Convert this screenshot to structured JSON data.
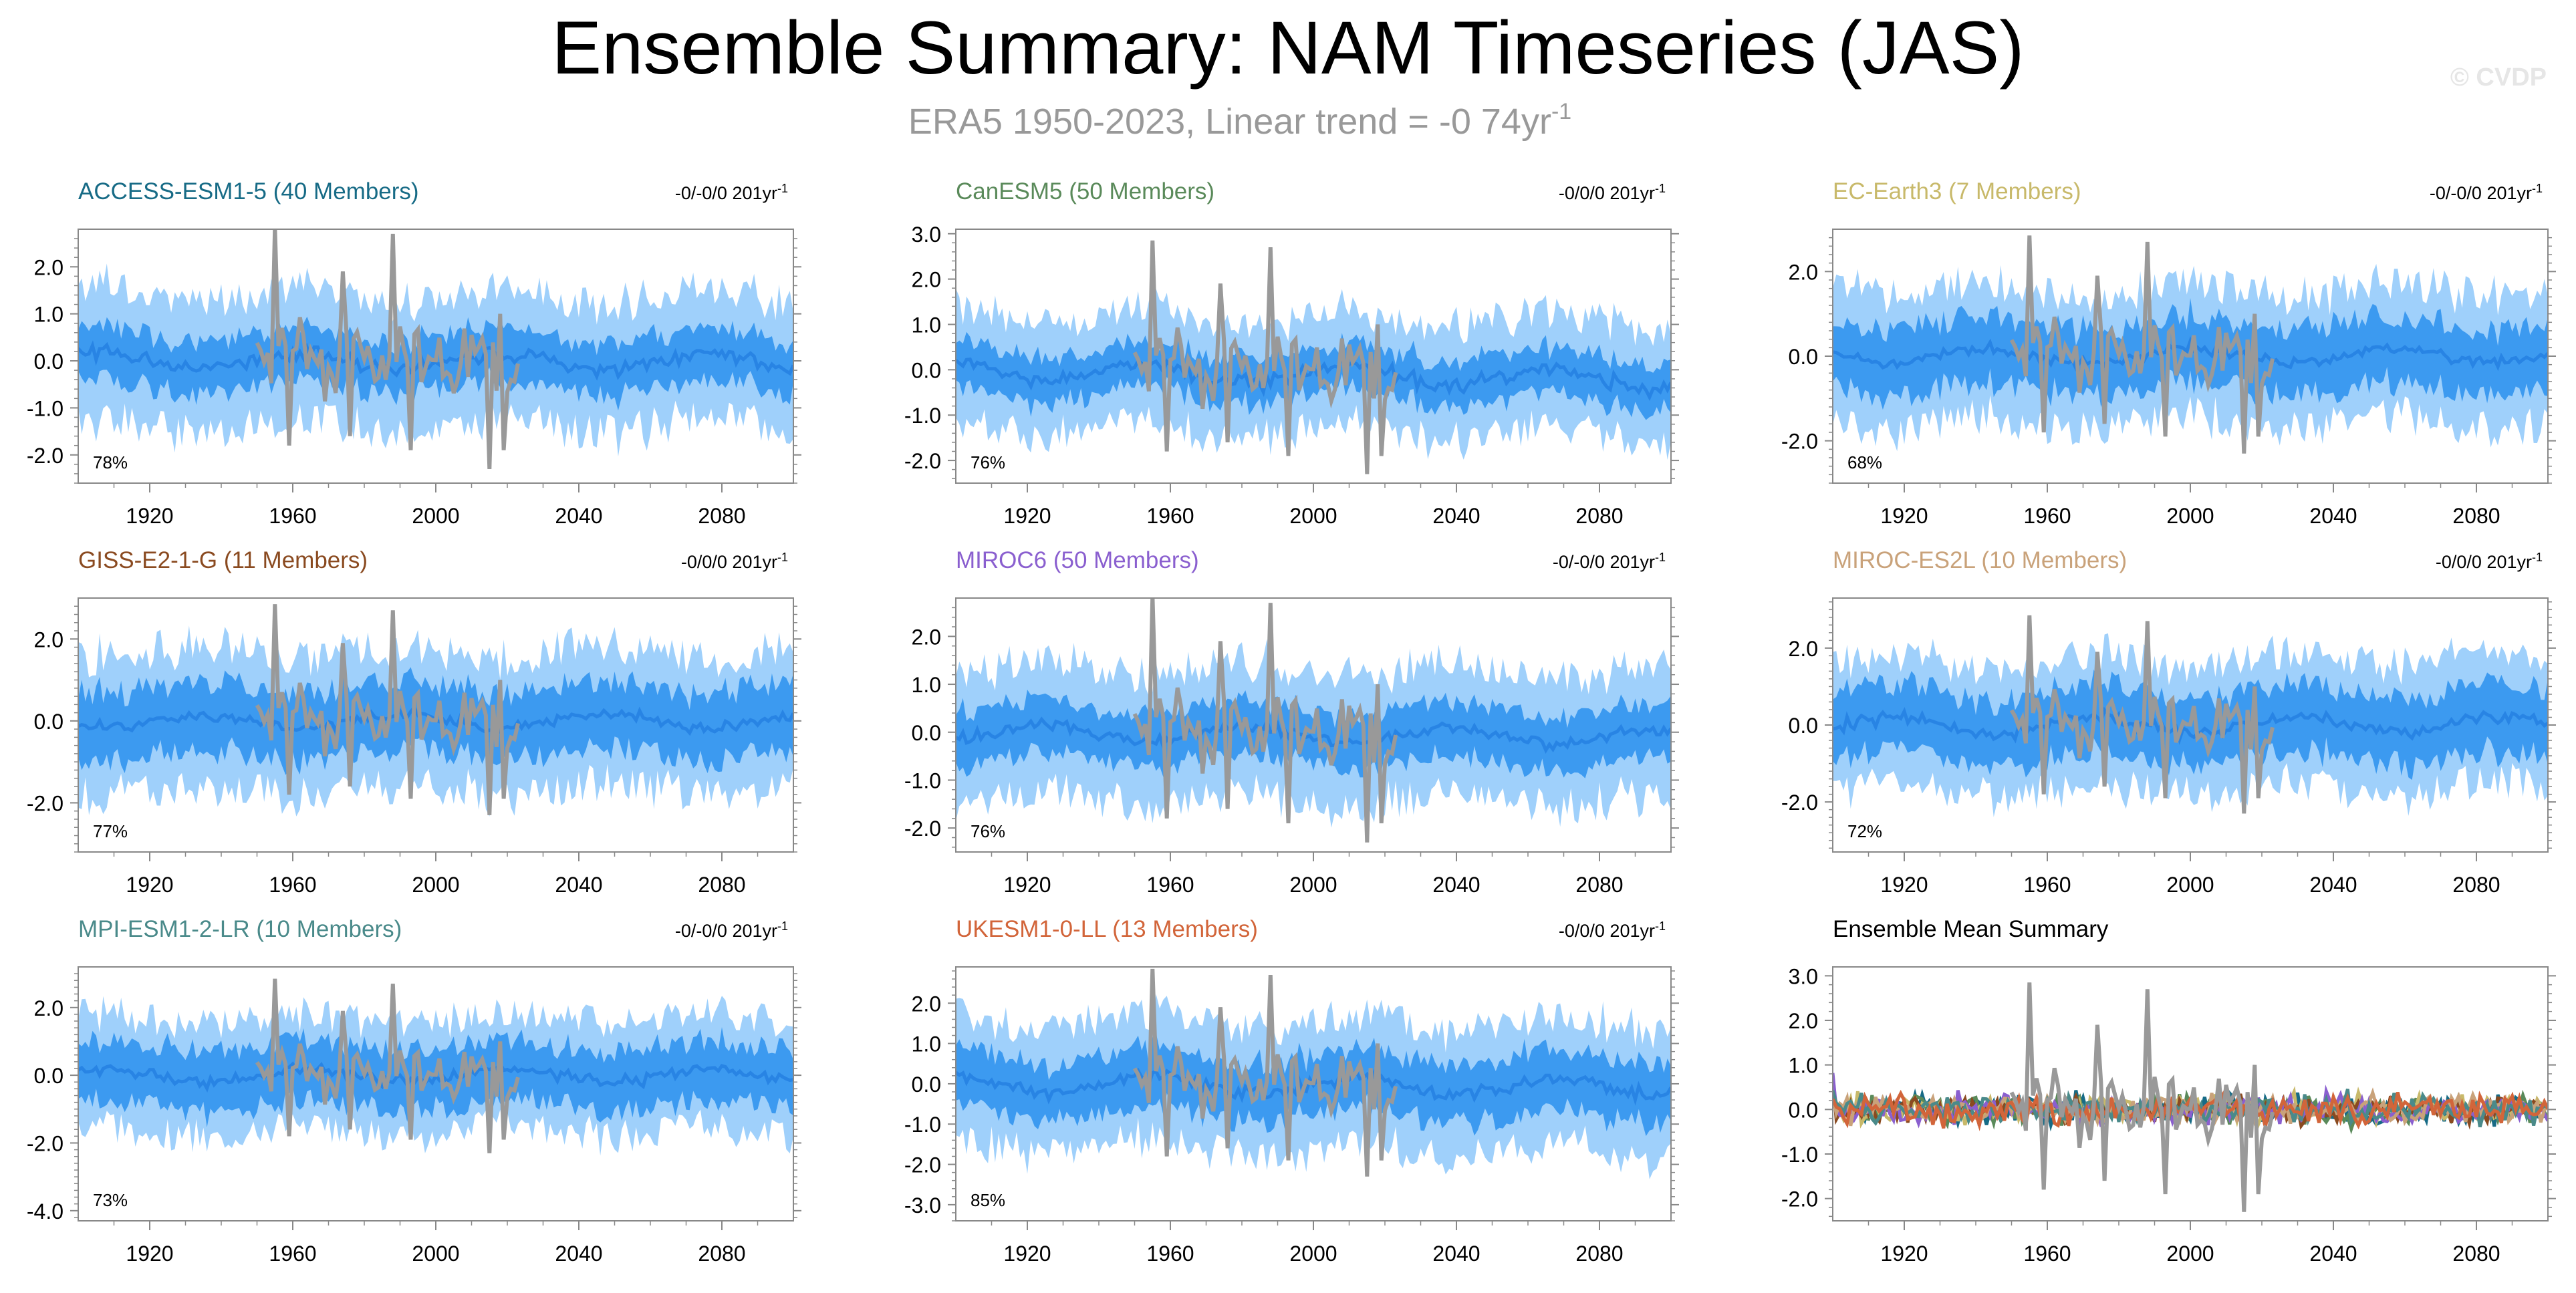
{
  "title": "Ensemble Summary: NAM Timeseries (JAS)",
  "subtitle_prefix": "ERA5 1950-2023, Linear trend = -0 74yr",
  "subtitle_exp": "-1",
  "watermark": "© CVDP",
  "colors": {
    "obs": "#999999",
    "outer_band": "#9fd0fb",
    "inner_band": "#3c9af0",
    "ens_mean": "#2884e4",
    "axis": "#888888"
  },
  "chart_data": [
    {
      "type": "area",
      "title": "ACCESS-ESM1-5 (40 Members)",
      "title_color": "#176b86",
      "trend_label": "-0/-0/0 201yr",
      "trend_exp": "-1",
      "pct": "78%",
      "ylim": [
        -2.6,
        2.8
      ],
      "yticks": [
        -2,
        -1,
        0,
        1,
        2
      ],
      "yticklabels": [
        "-2.0",
        "-1.0",
        "0.0",
        "1.0",
        "2.0"
      ],
      "xlim": [
        1900,
        2100
      ],
      "xticks": [
        1920,
        1960,
        2000,
        2040,
        2080
      ],
      "xticklabels": [
        "1920",
        "1960",
        "2000",
        "2040",
        "2080"
      ],
      "spread_outer": 1.3,
      "spread_inner": 0.5,
      "mean_amp": 0.22,
      "mean_trend": 0.0,
      "seed": 1
    },
    {
      "type": "area",
      "title": "CanESM5 (50 Members)",
      "title_color": "#5a8a5a",
      "trend_label": "-0/0/0 201yr",
      "trend_exp": "-1",
      "pct": "76%",
      "ylim": [
        -2.5,
        3.1
      ],
      "yticks": [
        -2,
        -1,
        0,
        1,
        2,
        3
      ],
      "yticklabels": [
        "-2.0",
        "-1.0",
        "0.0",
        "1.0",
        "2.0",
        "3.0"
      ],
      "xlim": [
        1900,
        2100
      ],
      "xticks": [
        1920,
        1960,
        2000,
        2040,
        2080
      ],
      "xticklabels": [
        "1920",
        "1960",
        "2000",
        "2040",
        "2080"
      ],
      "spread_outer": 1.2,
      "spread_inner": 0.45,
      "mean_amp": 0.25,
      "mean_trend": -0.2,
      "seed": 2
    },
    {
      "type": "area",
      "title": "EC-Earth3 (7 Members)",
      "title_color": "#c8b96a",
      "trend_label": "-0/-0/0 201yr",
      "trend_exp": "-1",
      "pct": "68%",
      "ylim": [
        -3.0,
        3.0
      ],
      "yticks": [
        -2,
        0,
        2
      ],
      "yticklabels": [
        "-2.0",
        "0.0",
        "2.0"
      ],
      "xlim": [
        1900,
        2100
      ],
      "xticks": [
        1920,
        1960,
        2000,
        2040,
        2080
      ],
      "xticklabels": [
        "1920",
        "1960",
        "2000",
        "2040",
        "2080"
      ],
      "spread_outer": 1.5,
      "spread_inner": 0.7,
      "mean_amp": 0.2,
      "mean_trend": 0.0,
      "seed": 3
    },
    {
      "type": "area",
      "title": "GISS-E2-1-G (11 Members)",
      "title_color": "#8a4a20",
      "trend_label": "-0/0/0 201yr",
      "trend_exp": "-1",
      "pct": "77%",
      "ylim": [
        -3.2,
        3.0
      ],
      "yticks": [
        -2,
        0,
        2
      ],
      "yticklabels": [
        "-2.0",
        "0.0",
        "2.0"
      ],
      "xlim": [
        1900,
        2100
      ],
      "xticks": [
        1920,
        1960,
        2000,
        2040,
        2080
      ],
      "xticklabels": [
        "1920",
        "1960",
        "2000",
        "2040",
        "2080"
      ],
      "spread_outer": 1.6,
      "spread_inner": 0.75,
      "mean_amp": 0.2,
      "mean_trend": 0.0,
      "seed": 4
    },
    {
      "type": "area",
      "title": "MIROC6 (50 Members)",
      "title_color": "#8a5fcf",
      "trend_label": "-0/-0/0 201yr",
      "trend_exp": "-1",
      "pct": "76%",
      "ylim": [
        -2.5,
        2.8
      ],
      "yticks": [
        -2,
        -1,
        0,
        1,
        2
      ],
      "yticklabels": [
        "-2.0",
        "-1.0",
        "0.0",
        "1.0",
        "2.0"
      ],
      "xlim": [
        1900,
        2100
      ],
      "xticks": [
        1920,
        1960,
        2000,
        2040,
        2080
      ],
      "xticklabels": [
        "1920",
        "1960",
        "2000",
        "2040",
        "2080"
      ],
      "spread_outer": 1.3,
      "spread_inner": 0.5,
      "mean_amp": 0.2,
      "mean_trend": -0.1,
      "seed": 5
    },
    {
      "type": "area",
      "title": "MIROC-ES2L (10 Members)",
      "title_color": "#c9a27a",
      "trend_label": "-0/0/0 201yr",
      "trend_exp": "-1",
      "pct": "72%",
      "ylim": [
        -3.3,
        3.3
      ],
      "yticks": [
        -2,
        0,
        2
      ],
      "yticklabels": [
        "-2.0",
        "0.0",
        "2.0"
      ],
      "xlim": [
        1900,
        2100
      ],
      "xticks": [
        1920,
        1960,
        2000,
        2040,
        2080
      ],
      "xticklabels": [
        "1920",
        "1960",
        "2000",
        "2040",
        "2080"
      ],
      "spread_outer": 1.6,
      "spread_inner": 0.8,
      "mean_amp": 0.25,
      "mean_trend": 0.0,
      "seed": 6
    },
    {
      "type": "area",
      "title": "MPI-ESM1-2-LR (10 Members)",
      "title_color": "#4a8a8a",
      "trend_label": "-0/-0/0 201yr",
      "trend_exp": "-1",
      "pct": "73%",
      "ylim": [
        -4.3,
        3.2
      ],
      "yticks": [
        -4,
        -2,
        0,
        2
      ],
      "yticklabels": [
        "-4.0",
        "-2.0",
        "0.0",
        "2.0"
      ],
      "xlim": [
        1900,
        2100
      ],
      "xticks": [
        1920,
        1960,
        2000,
        2040,
        2080
      ],
      "xticklabels": [
        "1920",
        "1960",
        "2000",
        "2040",
        "2080"
      ],
      "spread_outer": 1.6,
      "spread_inner": 0.8,
      "mean_amp": 0.25,
      "mean_trend": 0.0,
      "seed": 7
    },
    {
      "type": "area",
      "title": "UKESM1-0-LL (13 Members)",
      "title_color": "#d2653a",
      "trend_label": "-0/0/0 201yr",
      "trend_exp": "-1",
      "pct": "85%",
      "ylim": [
        -3.4,
        2.9
      ],
      "yticks": [
        -3,
        -2,
        -1,
        0,
        1,
        2
      ],
      "yticklabels": [
        "-3.0",
        "-2.0",
        "-1.0",
        "0.0",
        "1.0",
        "2.0"
      ],
      "xlim": [
        1900,
        2100
      ],
      "xticks": [
        1920,
        1960,
        2000,
        2040,
        2080
      ],
      "xticklabels": [
        "1920",
        "1960",
        "2000",
        "2040",
        "2080"
      ],
      "spread_outer": 1.5,
      "spread_inner": 0.65,
      "mean_amp": 0.25,
      "mean_trend": -0.1,
      "seed": 8
    },
    {
      "type": "line",
      "title": "Ensemble Mean Summary",
      "title_color": "#000000",
      "trend_label": "",
      "trend_exp": "",
      "pct": "",
      "ylim": [
        -2.5,
        3.2
      ],
      "yticks": [
        -2,
        -1,
        0,
        1,
        2,
        3
      ],
      "yticklabels": [
        "-2.0",
        "-1.0",
        "0.0",
        "1.0",
        "2.0",
        "3.0"
      ],
      "xlim": [
        1900,
        2100
      ],
      "xticks": [
        1920,
        1960,
        2000,
        2040,
        2080
      ],
      "xticklabels": [
        "1920",
        "1960",
        "2000",
        "2040",
        "2080"
      ],
      "series_colors": [
        "#176b86",
        "#5a8a5a",
        "#c8b96a",
        "#8a4a20",
        "#8a5fcf",
        "#c9a27a",
        "#4a8a8a",
        "#d2653a"
      ],
      "seed": 9
    }
  ],
  "obs_series": {
    "name": "ERA5",
    "x_start": 1950,
    "x_end": 2023,
    "peaks": [
      [
        1955,
        2.85
      ],
      [
        1959,
        -1.8
      ],
      [
        1974,
        1.9
      ],
      [
        1976,
        -1.6
      ],
      [
        1988,
        2.7
      ],
      [
        1993,
        -1.9
      ],
      [
        2015,
        -2.3
      ],
      [
        2018,
        1.0
      ],
      [
        2019,
        -1.9
      ]
    ]
  }
}
